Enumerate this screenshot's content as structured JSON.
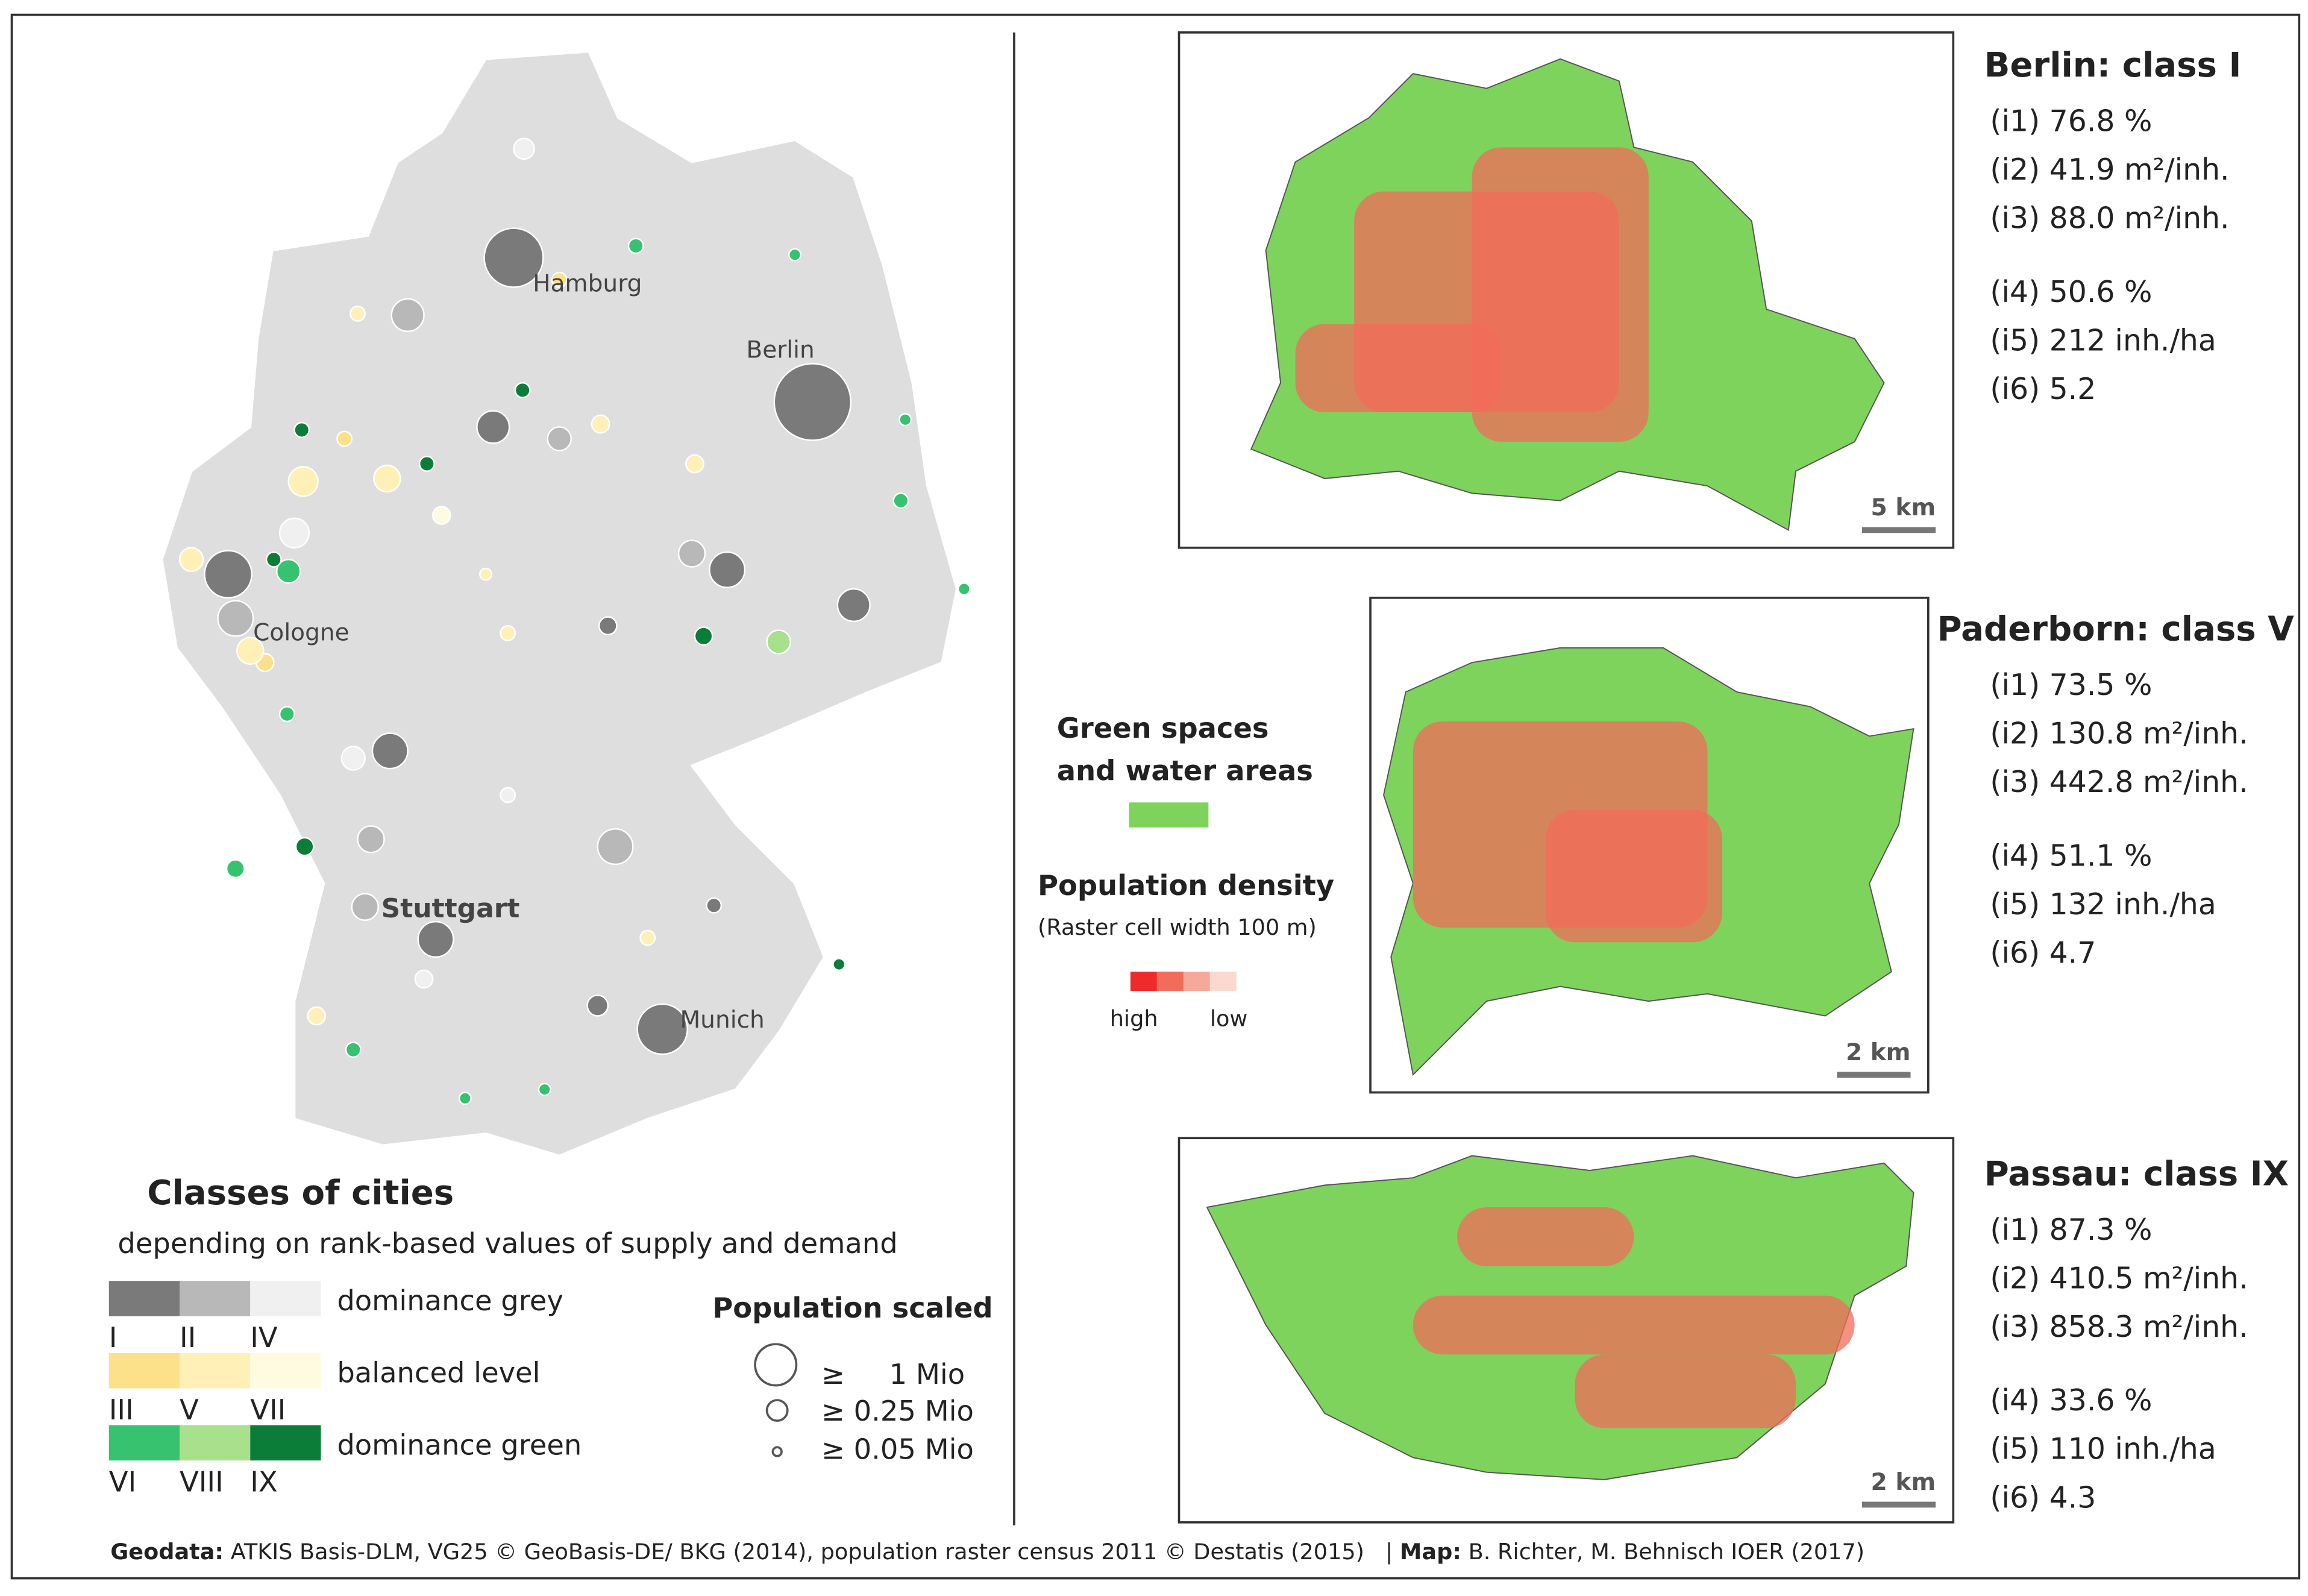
{
  "map": {
    "city_labels": [
      "Hamburg",
      "Berlin",
      "Cologne",
      "Stuttgart",
      "Munich"
    ],
    "legend": {
      "title": "Classes of cities",
      "subtitle": "depending on rank-based values of supply and demand",
      "rows": [
        {
          "label": "dominance grey",
          "classes": [
            "I",
            "II",
            "IV"
          ]
        },
        {
          "label": "balanced level",
          "classes": [
            "III",
            "V",
            "VII"
          ]
        },
        {
          "label": "dominance green",
          "classes": [
            "VI",
            "VIII",
            "IX"
          ]
        }
      ],
      "population_title": "Population scaled",
      "population_items": [
        "≥     1 Mio",
        "≥ 0.25 Mio",
        "≥ 0.05 Mio"
      ]
    }
  },
  "panels": [
    {
      "title": "Berlin: class I",
      "indicators": [
        "(i1) 76.8 %",
        "(i2) 41.9 m²/inh.",
        "(i3) 88.0 m²/inh.",
        "(i4) 50.6 %",
        "(i5) 212 inh./ha",
        "(i6) 5.2"
      ],
      "scale": "5 km"
    },
    {
      "title": "Paderborn: class V",
      "indicators": [
        "(i1) 73.5 %",
        "(i2) 130.8 m²/inh.",
        "(i3) 442.8 m²/inh.",
        "(i4) 51.1 %",
        "(i5) 132 inh./ha",
        "(i6) 4.7"
      ],
      "scale": "2 km"
    },
    {
      "title": "Passau: class IX",
      "indicators": [
        "(i1) 87.3 %",
        "(i2) 410.5 m²/inh.",
        "(i3) 858.3 m²/inh.",
        "(i4) 33.6 %",
        "(i5) 110 inh./ha",
        "(i6) 4.3"
      ],
      "scale": "2 km"
    }
  ],
  "density_legend": {
    "green_title_1": "Green spaces",
    "green_title_2": "and water areas",
    "density_title": "Population density",
    "density_note": "(Raster cell width 100 m)",
    "high": "high",
    "low": "low"
  },
  "footer": {
    "geodata_label": "Geodata:",
    "geodata_text": "ATKIS Basis-DLM, VG25 © GeoBasis-DE/ BKG (2014), population raster census 2011 © Destatis (2015)   |",
    "map_label": "Map:",
    "map_text": "B. Richter, M. Behnisch IOER (2017)"
  }
}
